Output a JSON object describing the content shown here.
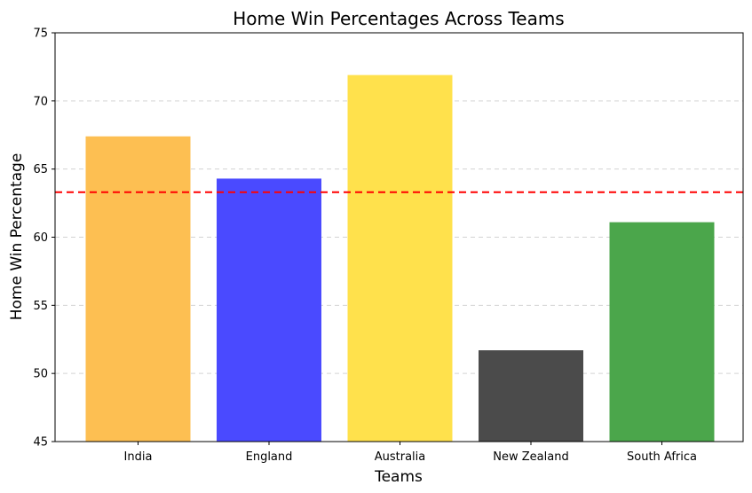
{
  "chart_data": {
    "type": "bar",
    "title": "Home Win Percentages Across Teams",
    "xlabel": "Teams",
    "ylabel": "Home Win Percentage",
    "categories": [
      "India",
      "England",
      "Australia",
      "New Zealand",
      "South Africa"
    ],
    "values": [
      67.4,
      64.3,
      71.9,
      51.7,
      61.1
    ],
    "colors": [
      "#fdbf52",
      "#4a4aff",
      "#ffe14c",
      "#4b4b4b",
      "#4ba64b"
    ],
    "ylim": [
      45,
      75
    ],
    "yticks": [
      45,
      50,
      55,
      60,
      65,
      70,
      75
    ],
    "reference_line": {
      "value": 63.3,
      "color": "#ff0000",
      "style": "dashed"
    },
    "grid": "y-dashed"
  }
}
